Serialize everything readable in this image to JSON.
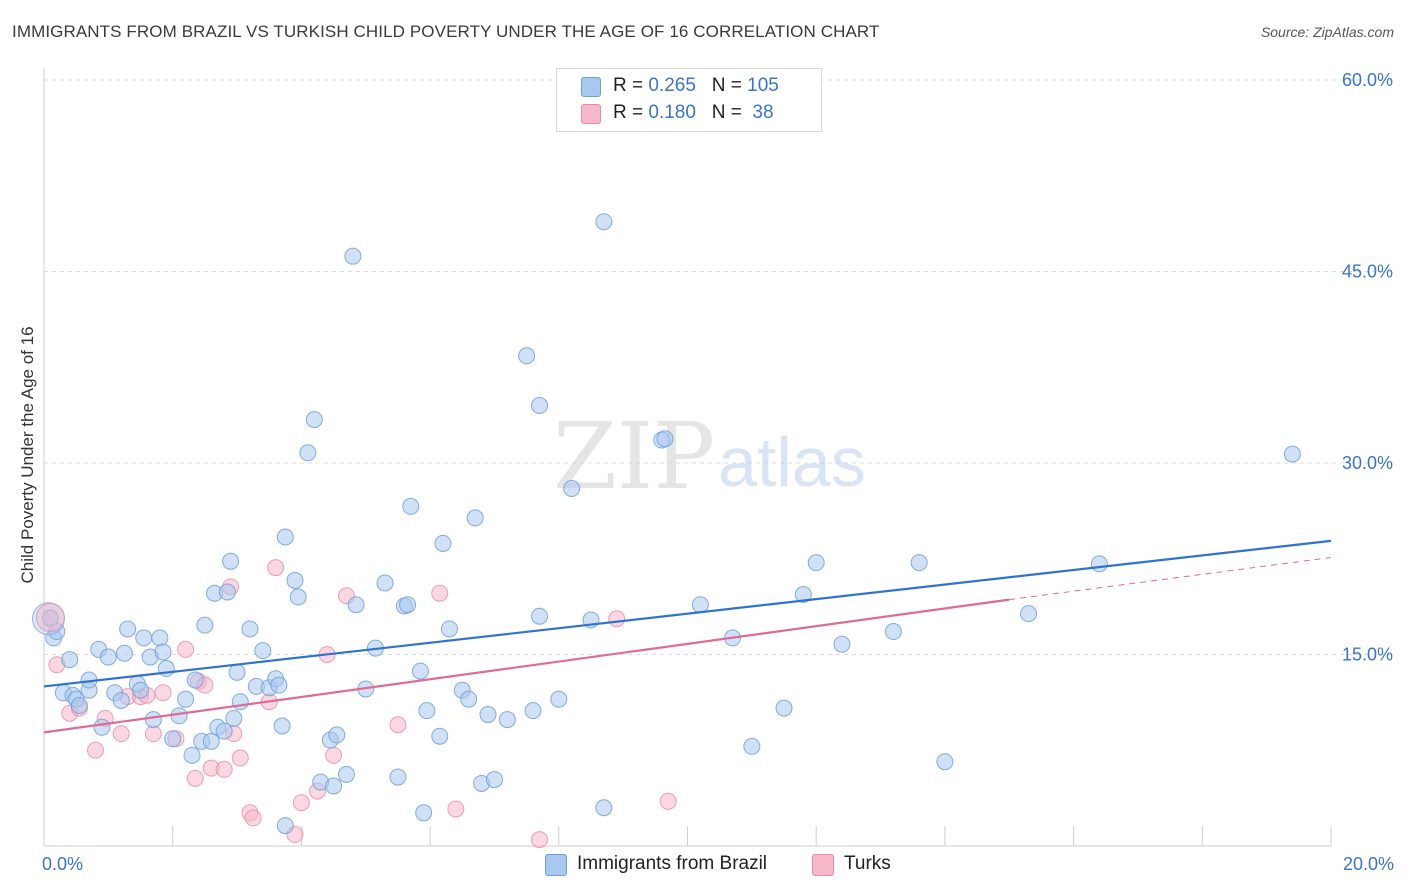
{
  "title": "IMMIGRANTS FROM BRAZIL VS TURKISH CHILD POVERTY UNDER THE AGE OF 16 CORRELATION CHART",
  "source": "Source: ZipAtlas.com",
  "watermark": {
    "zip": "ZIP",
    "atlas": "atlas"
  },
  "legend": {
    "rows": [
      {
        "r_label": "R = ",
        "r_value": "0.265",
        "n_label": "N = ",
        "n_value": "105",
        "color": "#a9c8ef"
      },
      {
        "r_label": "R = ",
        "r_value": "0.180",
        "n_label": "N = ",
        "n_value": " 38",
        "color": "#f6b7c9"
      }
    ]
  },
  "bottom_legend": [
    {
      "label": "Immigrants from Brazil",
      "color": "#a9c8ef"
    },
    {
      "label": "Turks",
      "color": "#f6b7c9"
    }
  ],
  "chart_data": {
    "type": "scatter",
    "title": "IMMIGRANTS FROM BRAZIL VS TURKISH CHILD POVERTY UNDER THE AGE OF 16 CORRELATION CHART",
    "xlabel": "",
    "ylabel": "Child Poverty Under the Age of 16",
    "xlim": [
      0,
      20
    ],
    "ylim": [
      0,
      60
    ],
    "x_tick_labels": [
      "0.0%",
      "20.0%"
    ],
    "y_tick_labels": [
      "15.0%",
      "30.0%",
      "45.0%",
      "60.0%"
    ],
    "y_ticks": [
      15,
      30,
      45,
      60
    ],
    "colors": {
      "brazil_fill": "#a9c8ef",
      "brazil_stroke": "#6f9fd8",
      "brazil_line": "#2f72d0",
      "turks_fill": "#f6b7c9",
      "turks_stroke": "#e88aa8",
      "turks_line": "#e06a96",
      "axis_text": "#3a74c9",
      "grid": "#dcdcdc"
    },
    "series": [
      {
        "name": "Immigrants from Brazil",
        "r": 0.265,
        "n": 105,
        "trend": {
          "x": [
            0,
            20
          ],
          "y": [
            12.5,
            23.9
          ]
        },
        "points": [
          [
            0.1,
            17.8
          ],
          [
            0.15,
            16.3
          ],
          [
            0.2,
            16.8
          ],
          [
            0.3,
            12.0
          ],
          [
            0.4,
            14.6
          ],
          [
            0.45,
            11.8
          ],
          [
            0.5,
            11.5
          ],
          [
            0.55,
            11.0
          ],
          [
            0.7,
            12.2
          ],
          [
            0.7,
            13.0
          ],
          [
            0.85,
            15.4
          ],
          [
            0.9,
            9.3
          ],
          [
            1.0,
            14.8
          ],
          [
            1.1,
            12.0
          ],
          [
            1.2,
            11.4
          ],
          [
            1.25,
            15.1
          ],
          [
            1.3,
            17.0
          ],
          [
            1.45,
            12.7
          ],
          [
            1.5,
            12.2
          ],
          [
            1.55,
            16.3
          ],
          [
            1.65,
            14.8
          ],
          [
            1.7,
            9.9
          ],
          [
            1.8,
            16.3
          ],
          [
            1.85,
            15.2
          ],
          [
            1.9,
            13.9
          ],
          [
            2.0,
            8.4
          ],
          [
            2.1,
            10.2
          ],
          [
            2.2,
            11.5
          ],
          [
            2.3,
            7.1
          ],
          [
            2.35,
            13.0
          ],
          [
            2.45,
            8.2
          ],
          [
            2.5,
            17.3
          ],
          [
            2.6,
            8.2
          ],
          [
            2.65,
            19.8
          ],
          [
            2.7,
            9.3
          ],
          [
            2.8,
            9.0
          ],
          [
            2.85,
            19.9
          ],
          [
            2.9,
            22.3
          ],
          [
            2.95,
            10.0
          ],
          [
            3.0,
            13.6
          ],
          [
            3.05,
            11.3
          ],
          [
            3.2,
            17.0
          ],
          [
            3.3,
            12.5
          ],
          [
            3.4,
            15.3
          ],
          [
            3.5,
            12.4
          ],
          [
            3.6,
            13.1
          ],
          [
            3.65,
            12.6
          ],
          [
            3.7,
            9.4
          ],
          [
            3.75,
            24.2
          ],
          [
            3.9,
            20.8
          ],
          [
            3.95,
            19.5
          ],
          [
            4.1,
            30.8
          ],
          [
            4.2,
            33.4
          ],
          [
            4.3,
            5.0
          ],
          [
            4.45,
            8.3
          ],
          [
            4.5,
            4.7
          ],
          [
            4.55,
            8.7
          ],
          [
            4.7,
            5.6
          ],
          [
            4.8,
            46.2
          ],
          [
            4.85,
            18.9
          ],
          [
            5.0,
            12.3
          ],
          [
            5.15,
            15.5
          ],
          [
            5.3,
            20.6
          ],
          [
            5.5,
            5.4
          ],
          [
            5.6,
            18.8
          ],
          [
            5.65,
            18.9
          ],
          [
            5.7,
            26.6
          ],
          [
            5.85,
            13.7
          ],
          [
            5.9,
            2.6
          ],
          [
            5.95,
            10.6
          ],
          [
            6.15,
            8.6
          ],
          [
            6.2,
            23.7
          ],
          [
            6.3,
            17.0
          ],
          [
            6.5,
            12.2
          ],
          [
            6.6,
            11.5
          ],
          [
            6.7,
            25.7
          ],
          [
            6.8,
            4.9
          ],
          [
            6.9,
            10.3
          ],
          [
            7.0,
            5.2
          ],
          [
            7.2,
            9.9
          ],
          [
            7.5,
            38.4
          ],
          [
            7.6,
            10.6
          ],
          [
            7.7,
            18.0
          ],
          [
            7.7,
            34.5
          ],
          [
            8.0,
            11.5
          ],
          [
            8.2,
            28.0
          ],
          [
            8.5,
            17.7
          ],
          [
            8.7,
            3.0
          ],
          [
            8.7,
            48.9
          ],
          [
            9.6,
            31.8
          ],
          [
            9.65,
            31.9
          ],
          [
            10.2,
            18.9
          ],
          [
            10.7,
            16.3
          ],
          [
            11.0,
            7.8
          ],
          [
            11.5,
            10.8
          ],
          [
            11.8,
            19.7
          ],
          [
            12.0,
            22.2
          ],
          [
            12.4,
            15.8
          ],
          [
            13.2,
            16.8
          ],
          [
            13.6,
            22.2
          ],
          [
            14.0,
            6.6
          ],
          [
            15.3,
            18.2
          ],
          [
            16.4,
            22.1
          ],
          [
            19.4,
            30.7
          ],
          [
            3.75,
            1.6
          ]
        ]
      },
      {
        "name": "Turks",
        "r": 0.18,
        "n": 38,
        "trend": {
          "x": [
            0,
            15
          ],
          "y": [
            8.9,
            19.3
          ]
        },
        "trend_ext": {
          "x": [
            15,
            20
          ],
          "y": [
            19.3,
            22.6
          ]
        },
        "points": [
          [
            0.1,
            17.9
          ],
          [
            0.2,
            14.2
          ],
          [
            0.4,
            10.4
          ],
          [
            0.55,
            10.8
          ],
          [
            0.8,
            7.5
          ],
          [
            0.95,
            10.0
          ],
          [
            1.2,
            8.8
          ],
          [
            1.3,
            11.7
          ],
          [
            1.5,
            11.7
          ],
          [
            1.6,
            11.8
          ],
          [
            1.7,
            8.8
          ],
          [
            1.85,
            12.0
          ],
          [
            2.05,
            8.4
          ],
          [
            2.2,
            15.4
          ],
          [
            2.35,
            5.3
          ],
          [
            2.4,
            12.9
          ],
          [
            2.5,
            12.6
          ],
          [
            2.6,
            6.1
          ],
          [
            2.8,
            6.0
          ],
          [
            2.9,
            20.3
          ],
          [
            2.95,
            8.8
          ],
          [
            3.05,
            6.9
          ],
          [
            3.2,
            2.6
          ],
          [
            3.25,
            2.2
          ],
          [
            3.5,
            11.3
          ],
          [
            3.6,
            21.8
          ],
          [
            3.9,
            0.9
          ],
          [
            4.0,
            3.4
          ],
          [
            4.25,
            4.3
          ],
          [
            4.4,
            15.0
          ],
          [
            4.5,
            7.1
          ],
          [
            4.7,
            19.6
          ],
          [
            5.5,
            9.5
          ],
          [
            6.15,
            19.8
          ],
          [
            6.4,
            2.9
          ],
          [
            7.7,
            0.5
          ],
          [
            8.9,
            17.8
          ],
          [
            9.7,
            3.5
          ]
        ]
      }
    ]
  }
}
